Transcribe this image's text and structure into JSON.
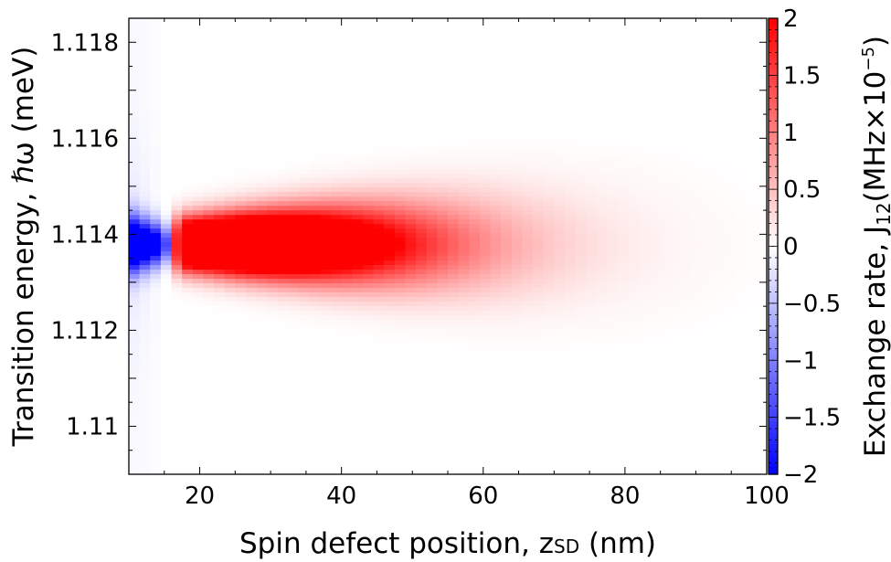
{
  "chart_data": {
    "type": "heatmap",
    "xlabel": "Spin defect position, z",
    "xlabel_sub": "SD",
    "xlabel_tail": " (nm)",
    "ylabel": "Transition energy, ℏω (meV)",
    "colorbar_label": "Exchange rate, J",
    "colorbar_label_sub": "12",
    "colorbar_label_tail": "(MHz×10",
    "colorbar_label_sup": "−5",
    "colorbar_label_close": ")",
    "xlim": [
      10,
      100
    ],
    "ylim": [
      1.109,
      1.1185
    ],
    "clim": [
      -2,
      2
    ],
    "x_ticks": [
      20,
      40,
      60,
      80,
      100
    ],
    "x_tick_labels": [
      "20",
      "40",
      "60",
      "80",
      "100"
    ],
    "y_ticks": [
      1.11,
      1.112,
      1.114,
      1.116,
      1.118
    ],
    "y_tick_labels": [
      "1.11",
      "1.112",
      "1.114",
      "1.116",
      "1.118"
    ],
    "colorbar_ticks": [
      -2,
      -1.5,
      -1,
      -0.5,
      0,
      0.5,
      1,
      1.5,
      2
    ],
    "colorbar_tick_labels": [
      "−2",
      "−1.5",
      "−1",
      "−0.5",
      "0",
      "0.5",
      "1",
      "1.5",
      "2"
    ],
    "colormap": {
      "negative": "#0000ff",
      "zero": "#ffffff",
      "positive": "#ff0000"
    },
    "center_energy": 1.1138,
    "negative_region_x": [
      10,
      22
    ],
    "positive_region_x": [
      14,
      100
    ],
    "peak_positive_x": 25,
    "peak_value_positive": 2,
    "peak_value_negative": -2,
    "grid": false
  }
}
